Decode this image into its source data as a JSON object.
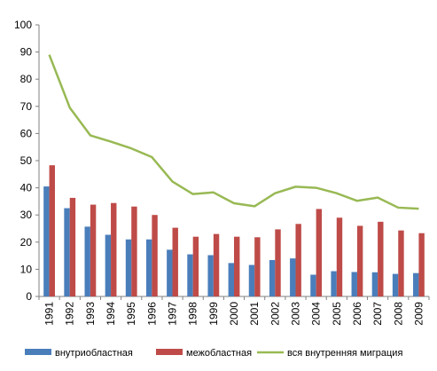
{
  "chart_data": {
    "type": "bar",
    "categories": [
      "1991",
      "1992",
      "1993",
      "1994",
      "1995",
      "1996",
      "1997",
      "1998",
      "1999",
      "2000",
      "2001",
      "2002",
      "2003",
      "2004",
      "2005",
      "2006",
      "2007",
      "2008",
      "2009"
    ],
    "series": [
      {
        "name": "внутриобластная",
        "type": "bar",
        "color": "#4a7ebb",
        "values": [
          40.5,
          32.5,
          25.7,
          22.7,
          21.0,
          21.0,
          17.2,
          15.5,
          15.2,
          12.3,
          11.6,
          13.4,
          14.0,
          8.0,
          9.3,
          9.0,
          8.9,
          8.3,
          8.6
        ]
      },
      {
        "name": "межобластная",
        "type": "bar",
        "color": "#be4b48",
        "values": [
          48.3,
          36.3,
          33.8,
          34.4,
          33.1,
          30.0,
          25.3,
          22.0,
          23.0,
          22.0,
          21.8,
          24.7,
          26.7,
          32.2,
          29.0,
          26.0,
          27.5,
          24.3,
          23.3
        ]
      },
      {
        "name": "вся внутренняя  миграция",
        "type": "line",
        "color": "#98b954",
        "values": [
          89.0,
          69.5,
          59.3,
          57.0,
          54.5,
          51.3,
          42.3,
          37.7,
          38.3,
          34.3,
          33.2,
          38.0,
          40.4,
          40.0,
          38.0,
          35.2,
          36.4,
          32.7,
          32.3
        ]
      }
    ],
    "title": "",
    "xlabel": "",
    "ylabel": "",
    "ylim": [
      0,
      100
    ],
    "yticks": [
      "0",
      "10",
      "20",
      "30",
      "40",
      "50",
      "60",
      "70",
      "80",
      "90",
      "100"
    ],
    "grid": false,
    "legend": "bottom"
  }
}
